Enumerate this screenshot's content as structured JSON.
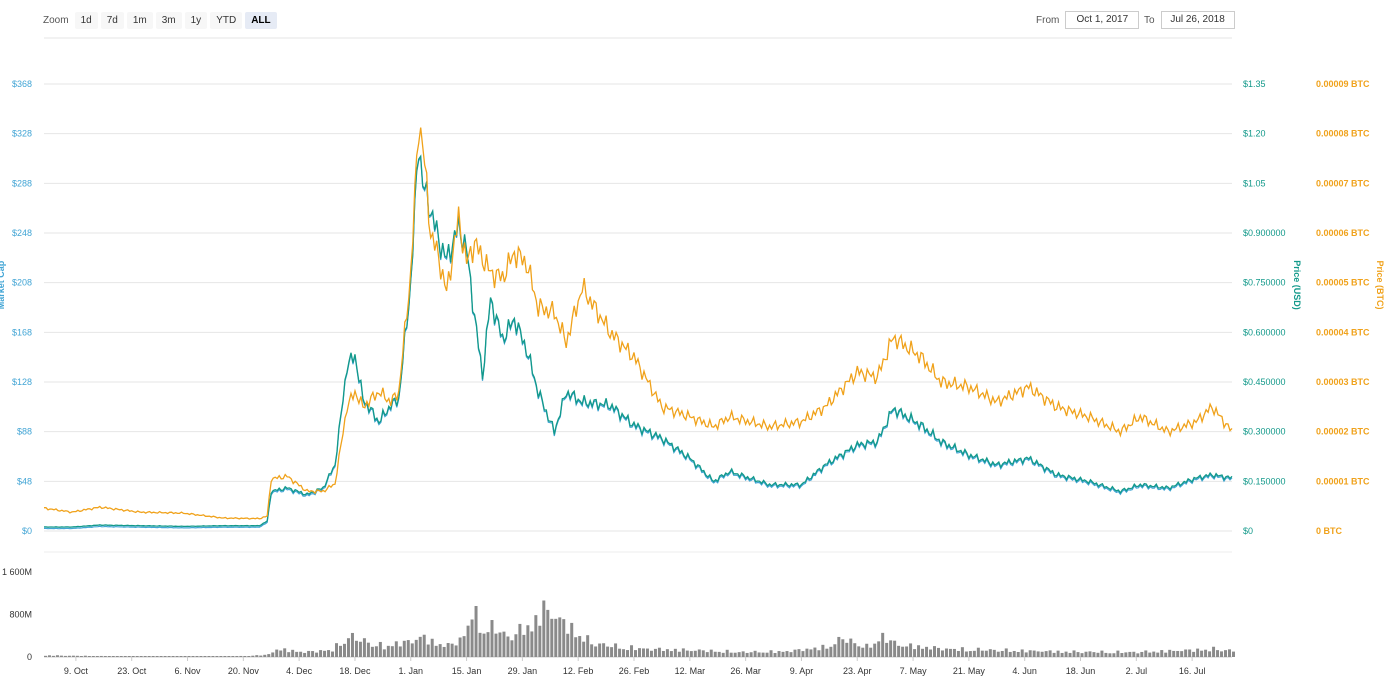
{
  "zoom": {
    "label": "Zoom",
    "buttons": [
      "1d",
      "7d",
      "1m",
      "3m",
      "1y",
      "YTD",
      "ALL"
    ],
    "active": "ALL"
  },
  "range": {
    "from_label": "From",
    "from_value": "Oct 1, 2017",
    "to_label": "To",
    "to_value": "Jul 26, 2018"
  },
  "colors": {
    "market_cap": "#42a5d5",
    "price_usd": "#12998a",
    "price_btc": "#f0a21b",
    "volume": "#8a8a8a"
  },
  "chart_data": {
    "type": "line",
    "x_range": [
      "2017-10-01",
      "2018-07-26"
    ],
    "x_ticks": [
      "9. Oct",
      "23. Oct",
      "6. Nov",
      "20. Nov",
      "4. Dec",
      "18. Dec",
      "1. Jan",
      "15. Jan",
      "29. Jan",
      "12. Feb",
      "26. Feb",
      "12. Mar",
      "26. Mar",
      "9. Apr",
      "23. Apr",
      "7. May",
      "21. May",
      "4. Jun",
      "18. Jun",
      "2. Jul",
      "16. Jul"
    ],
    "axes": {
      "market_cap": {
        "label": "Market Cap",
        "ticks": [
          "$0",
          "$48",
          "$88",
          "$128",
          "$168",
          "$208",
          "$248",
          "$288",
          "$328",
          "$368"
        ]
      },
      "price_usd": {
        "label": "Price (USD)",
        "ticks": [
          "$0",
          "$0.150000",
          "$0.300000",
          "$0.450000",
          "$0.600000",
          "$0.750000",
          "$0.900000",
          "$1.05",
          "$1.20",
          "$1.35"
        ],
        "range": [
          0,
          1.35
        ]
      },
      "price_btc": {
        "label": "Price (BTC)",
        "ticks": [
          "0 BTC",
          "0.00001 BTC",
          "0.00002 BTC",
          "0.00003 BTC",
          "0.00004 BTC",
          "0.00005 BTC",
          "0.00006 BTC",
          "0.00007 BTC",
          "0.00008 BTC",
          "0.00009 BTC"
        ],
        "range": [
          0,
          9e-05
        ]
      },
      "volume": {
        "ticks": [
          "0",
          "800M",
          "1 600M"
        ],
        "range": [
          0,
          1600
        ]
      }
    },
    "series": [
      {
        "key": "price_usd",
        "axis": "price_usd",
        "points": [
          [
            "2017-10-01",
            0.012
          ],
          [
            "2017-10-08",
            0.012
          ],
          [
            "2017-10-15",
            0.018
          ],
          [
            "2017-10-25",
            0.016
          ],
          [
            "2017-11-05",
            0.014
          ],
          [
            "2017-11-15",
            0.016
          ],
          [
            "2017-11-24",
            0.016
          ],
          [
            "2017-11-26",
            0.03
          ],
          [
            "2017-11-27",
            0.12
          ],
          [
            "2017-12-01",
            0.13
          ],
          [
            "2017-12-06",
            0.11
          ],
          [
            "2017-12-10",
            0.13
          ],
          [
            "2017-12-13",
            0.2
          ],
          [
            "2017-12-16",
            0.5
          ],
          [
            "2017-12-18",
            0.53
          ],
          [
            "2017-12-20",
            0.4
          ],
          [
            "2017-12-24",
            0.33
          ],
          [
            "2017-12-27",
            0.38
          ],
          [
            "2017-12-29",
            0.4
          ],
          [
            "2018-01-01",
            0.75
          ],
          [
            "2018-01-03",
            1.18
          ],
          [
            "2018-01-04",
            1.05
          ],
          [
            "2018-01-06",
            0.97
          ],
          [
            "2018-01-08",
            0.88
          ],
          [
            "2018-01-10",
            0.82
          ],
          [
            "2018-01-13",
            0.92
          ],
          [
            "2018-01-15",
            0.85
          ],
          [
            "2018-01-17",
            0.65
          ],
          [
            "2018-01-19",
            0.47
          ],
          [
            "2018-01-21",
            0.7
          ],
          [
            "2018-01-24",
            0.58
          ],
          [
            "2018-01-27",
            0.64
          ],
          [
            "2018-01-30",
            0.55
          ],
          [
            "2018-02-02",
            0.42
          ],
          [
            "2018-02-06",
            0.3
          ],
          [
            "2018-02-09",
            0.42
          ],
          [
            "2018-02-13",
            0.39
          ],
          [
            "2018-02-20",
            0.38
          ],
          [
            "2018-02-26",
            0.32
          ],
          [
            "2018-03-05",
            0.28
          ],
          [
            "2018-03-12",
            0.22
          ],
          [
            "2018-03-18",
            0.15
          ],
          [
            "2018-03-22",
            0.18
          ],
          [
            "2018-04-01",
            0.14
          ],
          [
            "2018-04-09",
            0.14
          ],
          [
            "2018-04-15",
            0.2
          ],
          [
            "2018-04-23",
            0.26
          ],
          [
            "2018-04-28",
            0.27
          ],
          [
            "2018-05-02",
            0.37
          ],
          [
            "2018-05-09",
            0.32
          ],
          [
            "2018-05-14",
            0.27
          ],
          [
            "2018-05-21",
            0.23
          ],
          [
            "2018-05-28",
            0.2
          ],
          [
            "2018-06-05",
            0.22
          ],
          [
            "2018-06-12",
            0.17
          ],
          [
            "2018-06-20",
            0.15
          ],
          [
            "2018-06-28",
            0.12
          ],
          [
            "2018-07-03",
            0.14
          ],
          [
            "2018-07-10",
            0.13
          ],
          [
            "2018-07-17",
            0.16
          ],
          [
            "2018-07-21",
            0.17
          ],
          [
            "2018-07-26",
            0.16
          ]
        ]
      },
      {
        "key": "price_btc",
        "axis": "price_btc",
        "points": [
          [
            "2017-10-01",
            4.6e-06
          ],
          [
            "2017-10-08",
            3.8e-06
          ],
          [
            "2017-10-15",
            4.8e-06
          ],
          [
            "2017-10-25",
            3.8e-06
          ],
          [
            "2017-11-05",
            3.6e-06
          ],
          [
            "2017-11-15",
            2.6e-06
          ],
          [
            "2017-11-24",
            2.5e-06
          ],
          [
            "2017-11-26",
            3e-06
          ],
          [
            "2017-11-27",
            1.05e-05
          ],
          [
            "2017-12-01",
            1.1e-05
          ],
          [
            "2017-12-06",
            8e-06
          ],
          [
            "2017-12-10",
            8e-06
          ],
          [
            "2017-12-13",
            9.5e-06
          ],
          [
            "2017-12-16",
            2.5e-05
          ],
          [
            "2017-12-18",
            2.8e-05
          ],
          [
            "2017-12-20",
            2.5e-05
          ],
          [
            "2017-12-24",
            2.8e-05
          ],
          [
            "2017-12-27",
            2.6e-05
          ],
          [
            "2017-12-29",
            2.8e-05
          ],
          [
            "2018-01-01",
            5.2e-05
          ],
          [
            "2018-01-03",
            8.2e-05
          ],
          [
            "2018-01-04",
            7.8e-05
          ],
          [
            "2018-01-06",
            6e-05
          ],
          [
            "2018-01-08",
            5.5e-05
          ],
          [
            "2018-01-10",
            4.8e-05
          ],
          [
            "2018-01-13",
            6.3e-05
          ],
          [
            "2018-01-15",
            5.4e-05
          ],
          [
            "2018-01-17",
            5.8e-05
          ],
          [
            "2018-01-19",
            5.5e-05
          ],
          [
            "2018-01-21",
            5.2e-05
          ],
          [
            "2018-01-24",
            5.1e-05
          ],
          [
            "2018-01-27",
            5.6e-05
          ],
          [
            "2018-01-30",
            5.4e-05
          ],
          [
            "2018-02-02",
            4.5e-05
          ],
          [
            "2018-02-06",
            4.4e-05
          ],
          [
            "2018-02-09",
            3.8e-05
          ],
          [
            "2018-02-13",
            4.9e-05
          ],
          [
            "2018-02-20",
            4e-05
          ],
          [
            "2018-02-26",
            3.5e-05
          ],
          [
            "2018-03-05",
            2.5e-05
          ],
          [
            "2018-03-12",
            2.3e-05
          ],
          [
            "2018-03-18",
            2.1e-05
          ],
          [
            "2018-03-22",
            2.3e-05
          ],
          [
            "2018-04-01",
            2.1e-05
          ],
          [
            "2018-04-09",
            2.2e-05
          ],
          [
            "2018-04-15",
            2.5e-05
          ],
          [
            "2018-04-23",
            3.2e-05
          ],
          [
            "2018-04-28",
            3.1e-05
          ],
          [
            "2018-05-02",
            3.9e-05
          ],
          [
            "2018-05-09",
            3.5e-05
          ],
          [
            "2018-05-14",
            3e-05
          ],
          [
            "2018-05-21",
            2.9e-05
          ],
          [
            "2018-05-28",
            2.6e-05
          ],
          [
            "2018-06-05",
            2.9e-05
          ],
          [
            "2018-06-12",
            2.5e-05
          ],
          [
            "2018-06-20",
            2.3e-05
          ],
          [
            "2018-06-28",
            2e-05
          ],
          [
            "2018-07-03",
            2.3e-05
          ],
          [
            "2018-07-10",
            2e-05
          ],
          [
            "2018-07-17",
            2.2e-05
          ],
          [
            "2018-07-21",
            2.5e-05
          ],
          [
            "2018-07-26",
            2e-05
          ]
        ]
      }
    ],
    "volume_series": {
      "axis": "volume",
      "points": [
        [
          "2017-10-01",
          40
        ],
        [
          "2017-10-15",
          20
        ],
        [
          "2017-11-01",
          15
        ],
        [
          "2017-11-20",
          20
        ],
        [
          "2017-11-26",
          60
        ],
        [
          "2017-11-28",
          200
        ],
        [
          "2017-12-05",
          120
        ],
        [
          "2017-12-12",
          180
        ],
        [
          "2017-12-16",
          520
        ],
        [
          "2017-12-18",
          450
        ],
        [
          "2017-12-25",
          260
        ],
        [
          "2017-12-29",
          360
        ],
        [
          "2018-01-01",
          380
        ],
        [
          "2018-01-03",
          520
        ],
        [
          "2018-01-06",
          380
        ],
        [
          "2018-01-10",
          280
        ],
        [
          "2018-01-14",
          500
        ],
        [
          "2018-01-16",
          1150
        ],
        [
          "2018-01-18",
          800
        ],
        [
          "2018-01-22",
          700
        ],
        [
          "2018-01-25",
          500
        ],
        [
          "2018-01-28",
          650
        ],
        [
          "2018-02-01",
          900
        ],
        [
          "2018-02-03",
          1200
        ],
        [
          "2018-02-06",
          1000
        ],
        [
          "2018-02-10",
          700
        ],
        [
          "2018-02-15",
          350
        ],
        [
          "2018-02-22",
          250
        ],
        [
          "2018-03-01",
          200
        ],
        [
          "2018-03-15",
          160
        ],
        [
          "2018-03-25",
          120
        ],
        [
          "2018-04-05",
          140
        ],
        [
          "2018-04-15",
          250
        ],
        [
          "2018-04-19",
          460
        ],
        [
          "2018-04-25",
          250
        ],
        [
          "2018-04-29",
          500
        ],
        [
          "2018-05-03",
          300
        ],
        [
          "2018-05-15",
          200
        ],
        [
          "2018-06-01",
          160
        ],
        [
          "2018-06-15",
          130
        ],
        [
          "2018-07-01",
          120
        ],
        [
          "2018-07-15",
          170
        ],
        [
          "2018-07-22",
          200
        ],
        [
          "2018-07-26",
          150
        ]
      ]
    }
  }
}
